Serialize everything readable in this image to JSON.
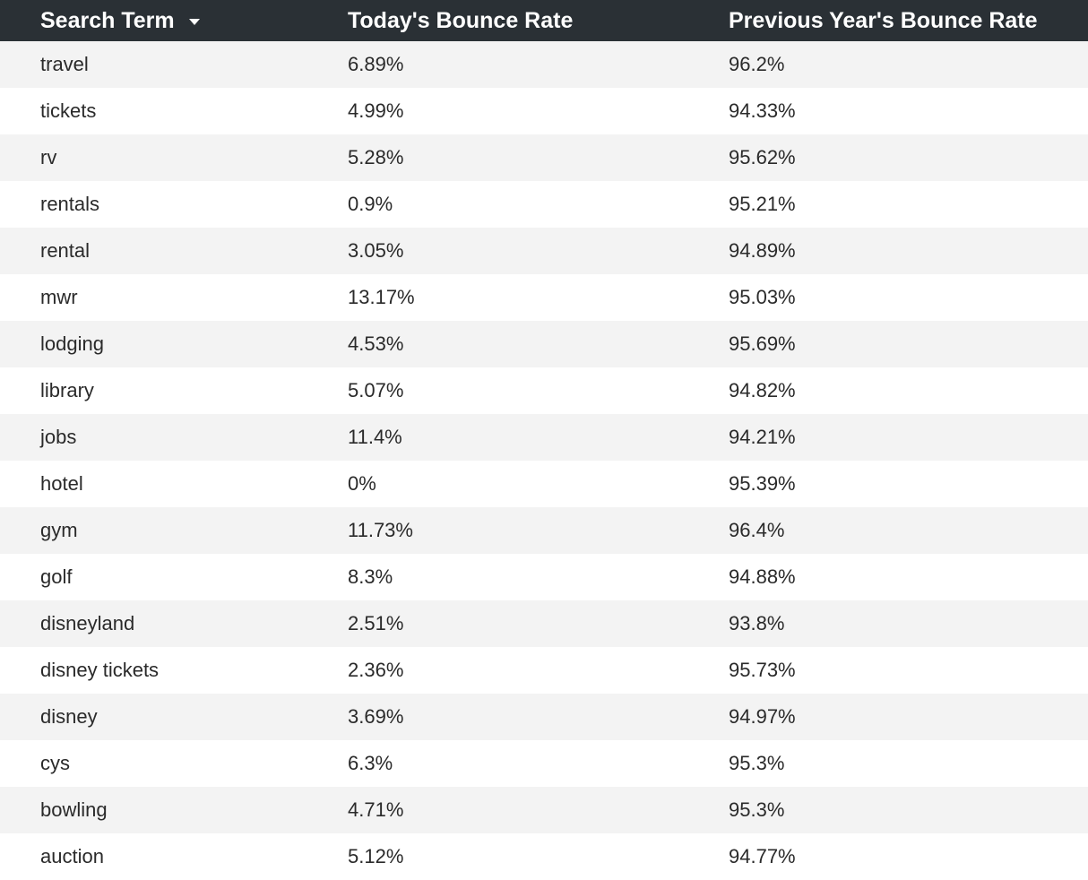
{
  "table": {
    "columns": {
      "term": "Search Term",
      "today": "Today's Bounce Rate",
      "previous": "Previous Year's Bounce Rate"
    },
    "sort": {
      "column": "term",
      "direction": "descending",
      "icon": "caret-down-icon"
    },
    "rows": [
      {
        "term": "travel",
        "today": "6.89%",
        "previous": "96.2%"
      },
      {
        "term": "tickets",
        "today": "4.99%",
        "previous": "94.33%"
      },
      {
        "term": "rv",
        "today": "5.28%",
        "previous": "95.62%"
      },
      {
        "term": "rentals",
        "today": "0.9%",
        "previous": "95.21%"
      },
      {
        "term": "rental",
        "today": "3.05%",
        "previous": "94.89%"
      },
      {
        "term": "mwr",
        "today": "13.17%",
        "previous": "95.03%"
      },
      {
        "term": "lodging",
        "today": "4.53%",
        "previous": "95.69%"
      },
      {
        "term": "library",
        "today": "5.07%",
        "previous": "94.82%"
      },
      {
        "term": "jobs",
        "today": "11.4%",
        "previous": "94.21%"
      },
      {
        "term": "hotel",
        "today": "0%",
        "previous": "95.39%"
      },
      {
        "term": "gym",
        "today": "11.73%",
        "previous": "96.4%"
      },
      {
        "term": "golf",
        "today": "8.3%",
        "previous": "94.88%"
      },
      {
        "term": "disneyland",
        "today": "2.51%",
        "previous": "93.8%"
      },
      {
        "term": "disney tickets",
        "today": "2.36%",
        "previous": "95.73%"
      },
      {
        "term": "disney",
        "today": "3.69%",
        "previous": "94.97%"
      },
      {
        "term": "cys",
        "today": "6.3%",
        "previous": "95.3%"
      },
      {
        "term": "bowling",
        "today": "4.71%",
        "previous": "95.3%"
      },
      {
        "term": "auction",
        "today": "5.12%",
        "previous": "94.77%"
      }
    ]
  },
  "colors": {
    "header_bg": "#2a3035",
    "header_text": "#ffffff",
    "row_alt": "#f3f3f3",
    "row": "#ffffff",
    "text": "#2a2a2a"
  }
}
